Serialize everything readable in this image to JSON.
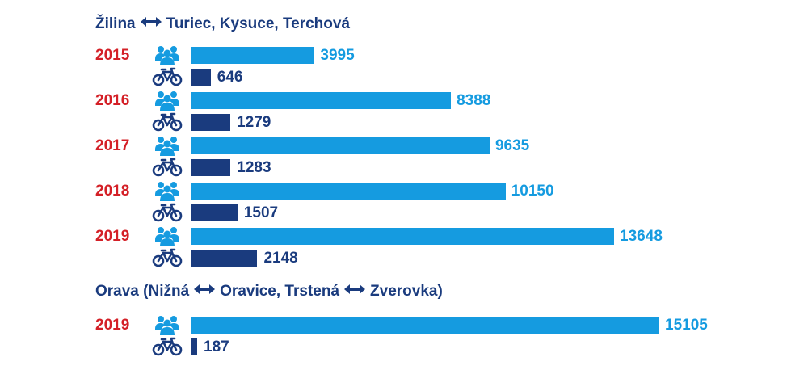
{
  "colors": {
    "people": "#159be0",
    "bike": "#1a3b7e",
    "year": "#d42027",
    "heading": "#1a3b7e"
  },
  "sections": [
    {
      "heading_parts": [
        "Žilina",
        "Turiec, Kysuce, Terchová"
      ],
      "rows": [
        {
          "year": "2015",
          "people": 3995,
          "bikes": 646
        },
        {
          "year": "2016",
          "people": 8388,
          "bikes": 1279
        },
        {
          "year": "2017",
          "people": 9635,
          "bikes": 1283
        },
        {
          "year": "2018",
          "people": 10150,
          "bikes": 1507
        },
        {
          "year": "2019",
          "people": 13648,
          "bikes": 2148
        }
      ]
    },
    {
      "heading_parts": [
        "Orava (Nižná",
        "Oravice, Trstená",
        "Zverovka)"
      ],
      "rows": [
        {
          "year": "2019",
          "people": 15105,
          "bikes": 187
        }
      ]
    }
  ],
  "chart_data": {
    "type": "bar",
    "orientation": "horizontal",
    "series": [
      {
        "icon": "people-icon"
      },
      {
        "icon": "bicycle-icon"
      }
    ],
    "groups": [
      {
        "section": "Žilina ↔ Turiec, Kysuce, Terchová",
        "categories": [
          "2015",
          "2016",
          "2017",
          "2018",
          "2019"
        ],
        "people": [
          3995,
          8388,
          9635,
          10150,
          13648
        ],
        "bikes": [
          646,
          1279,
          1283,
          1507,
          2148
        ]
      },
      {
        "section": "Orava (Nižná ↔ Oravice, Trstená ↔ Zverovka)",
        "categories": [
          "2019"
        ],
        "people": [
          15105
        ],
        "bikes": [
          187
        ]
      }
    ],
    "xlim": [
      0,
      15105
    ],
    "grid": false,
    "legend": "none"
  }
}
